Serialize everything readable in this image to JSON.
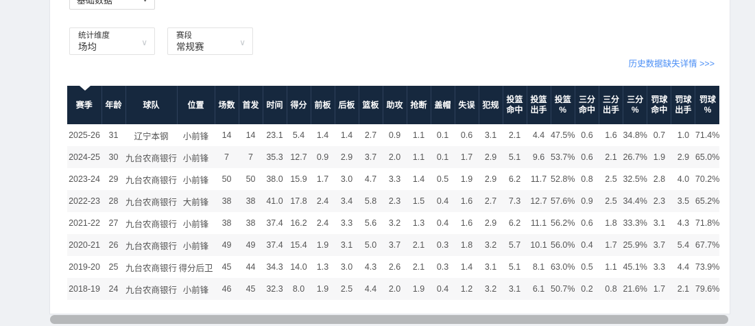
{
  "filters": {
    "data_type": {
      "value": "基础数据"
    },
    "dimension": {
      "label": "统计维度",
      "value": "场均"
    },
    "stage": {
      "label": "赛段",
      "value": "常规赛"
    }
  },
  "history_link": {
    "text": "历史数据缺失详情 >>>"
  },
  "colors": {
    "header_bg": "#16283e",
    "header_divider": "#2e415c",
    "stripe": "#f7f7f8",
    "link_blue": "#4a8ef5",
    "page_bg": "#eff1f4",
    "scrollbar_thumb": "#b6b8ba"
  },
  "table": {
    "columns": [
      "赛季",
      "年龄",
      "球队",
      "位置",
      "场数",
      "首发",
      "时间",
      "得分",
      "前板",
      "后板",
      "篮板",
      "助攻",
      "抢断",
      "盖帽",
      "失误",
      "犯规",
      "投篮\n命中",
      "投篮\n出手",
      "投篮\n%",
      "三分\n命中",
      "三分\n出手",
      "三分\n%",
      "罚球\n命中",
      "罚球\n出手",
      "罚球\n%"
    ],
    "rows": [
      [
        "2025-26",
        "31",
        "辽宁本钢",
        "小前锋",
        "14",
        "14",
        "23.1",
        "5.4",
        "1.4",
        "1.4",
        "2.7",
        "0.9",
        "1.1",
        "0.1",
        "0.6",
        "3.1",
        "2.1",
        "4.4",
        "47.5%",
        "0.6",
        "1.6",
        "34.8%",
        "0.7",
        "1.0",
        "71.4%"
      ],
      [
        "2024-25",
        "30",
        "九台农商银行",
        "小前锋",
        "7",
        "7",
        "35.3",
        "12.7",
        "0.9",
        "2.9",
        "3.7",
        "2.0",
        "1.1",
        "0.1",
        "1.7",
        "2.9",
        "5.1",
        "9.6",
        "53.7%",
        "0.6",
        "2.1",
        "26.7%",
        "1.9",
        "2.9",
        "65.0%"
      ],
      [
        "2023-24",
        "29",
        "九台农商银行",
        "小前锋",
        "50",
        "50",
        "38.0",
        "15.9",
        "1.7",
        "3.0",
        "4.7",
        "3.3",
        "1.4",
        "0.5",
        "1.9",
        "2.9",
        "6.2",
        "11.7",
        "52.8%",
        "0.8",
        "2.5",
        "32.5%",
        "2.8",
        "4.0",
        "70.2%"
      ],
      [
        "2022-23",
        "28",
        "九台农商银行",
        "大前锋",
        "38",
        "38",
        "41.0",
        "17.8",
        "2.4",
        "3.4",
        "5.8",
        "2.3",
        "1.5",
        "0.4",
        "1.6",
        "2.7",
        "7.3",
        "12.7",
        "57.6%",
        "0.9",
        "2.5",
        "34.4%",
        "2.3",
        "3.5",
        "65.2%"
      ],
      [
        "2021-22",
        "27",
        "九台农商银行",
        "小前锋",
        "38",
        "38",
        "37.4",
        "16.2",
        "2.4",
        "3.3",
        "5.6",
        "3.2",
        "1.3",
        "0.4",
        "1.6",
        "2.9",
        "6.2",
        "11.1",
        "56.2%",
        "0.6",
        "1.8",
        "33.3%",
        "3.1",
        "4.3",
        "71.8%"
      ],
      [
        "2020-21",
        "26",
        "九台农商银行",
        "小前锋",
        "49",
        "49",
        "37.4",
        "15.4",
        "1.9",
        "3.1",
        "5.0",
        "3.7",
        "2.1",
        "0.3",
        "1.8",
        "3.2",
        "5.7",
        "10.1",
        "56.0%",
        "0.4",
        "1.7",
        "25.9%",
        "3.7",
        "5.4",
        "67.7%"
      ],
      [
        "2019-20",
        "25",
        "九台农商银行",
        "得分后卫",
        "45",
        "44",
        "34.3",
        "14.0",
        "1.3",
        "3.0",
        "4.3",
        "2.6",
        "2.1",
        "0.3",
        "1.4",
        "3.1",
        "5.1",
        "8.1",
        "63.0%",
        "0.5",
        "1.1",
        "45.1%",
        "3.3",
        "4.4",
        "73.9%"
      ],
      [
        "2018-19",
        "24",
        "九台农商银行",
        "小前锋",
        "46",
        "45",
        "32.3",
        "8.0",
        "1.9",
        "2.5",
        "4.4",
        "2.0",
        "1.9",
        "0.4",
        "1.2",
        "3.2",
        "3.1",
        "6.1",
        "50.7%",
        "0.2",
        "0.8",
        "21.6%",
        "1.7",
        "2.1",
        "79.6%"
      ]
    ]
  }
}
